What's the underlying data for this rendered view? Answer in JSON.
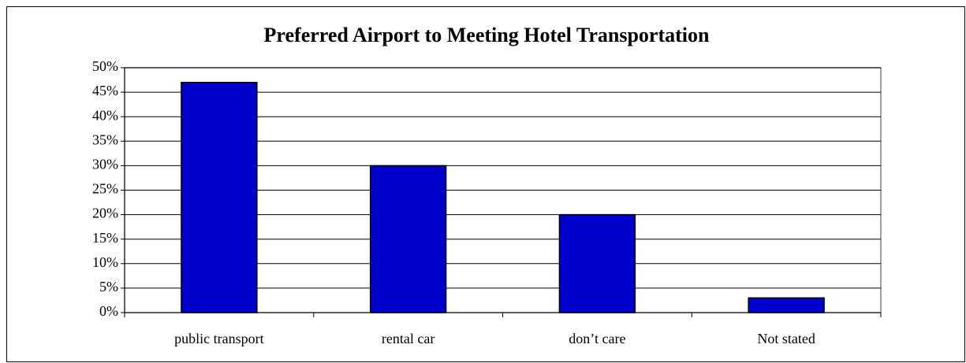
{
  "chart_data": {
    "type": "bar",
    "title": "Preferred Airport to Meeting Hotel Transportation",
    "categories": [
      "public transport",
      "rental car",
      "don’t care",
      "Not stated"
    ],
    "values": [
      47,
      30,
      20,
      3
    ],
    "color": "#0000cc",
    "ylim": [
      0,
      50
    ],
    "yticks": [
      {
        "value": 0,
        "label": "0%"
      },
      {
        "value": 5,
        "label": "5%"
      },
      {
        "value": 10,
        "label": "10%"
      },
      {
        "value": 15,
        "label": "15%"
      },
      {
        "value": 20,
        "label": "20%"
      },
      {
        "value": 25,
        "label": "25%"
      },
      {
        "value": 30,
        "label": "30%"
      },
      {
        "value": 35,
        "label": "35%"
      },
      {
        "value": 40,
        "label": "40%"
      },
      {
        "value": 45,
        "label": "45%"
      },
      {
        "value": 50,
        "label": "50%"
      }
    ],
    "grid": true
  }
}
